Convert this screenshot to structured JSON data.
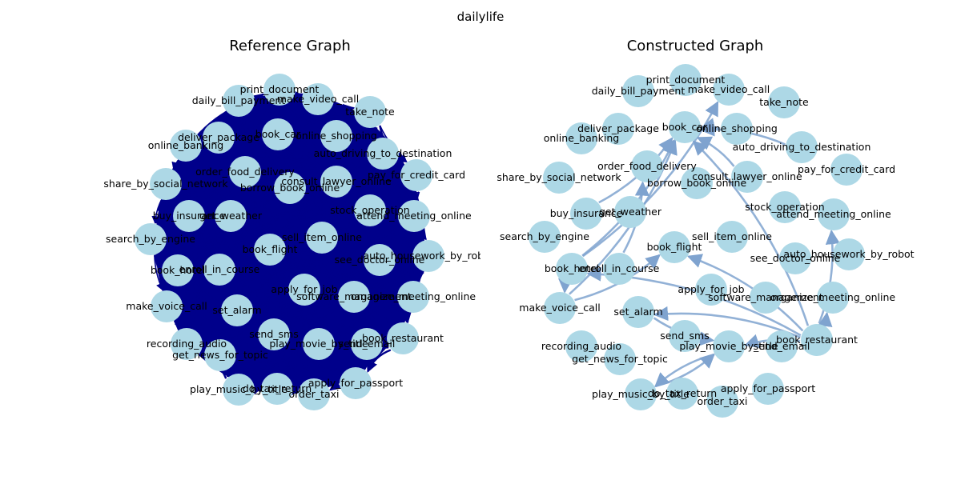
{
  "figure_title": "dailylife",
  "colors": {
    "node_fill": "#add8e6",
    "reference_edge": "#00008b",
    "constructed_edge": "#7fa3cf",
    "text": "#000000"
  },
  "reference_graph": {
    "title": "Reference Graph",
    "nodes": [
      {
        "id": "print_document",
        "label": "print_document"
      },
      {
        "id": "make_video_call",
        "label": "make_video_call"
      },
      {
        "id": "daily_bill_payment",
        "label": "daily_bill_payment"
      },
      {
        "id": "take_note",
        "label": "take_note"
      },
      {
        "id": "book_car",
        "label": "book_car"
      },
      {
        "id": "online_shopping",
        "label": "online_shopping"
      },
      {
        "id": "deliver_package",
        "label": "deliver_package"
      },
      {
        "id": "online_banking",
        "label": "online_banking"
      },
      {
        "id": "auto_driving_to_destination",
        "label": "auto_driving_to_destination"
      },
      {
        "id": "order_food_delivery",
        "label": "order_food_delivery"
      },
      {
        "id": "pay_for_credit_card",
        "label": "pay_for_credit_card"
      },
      {
        "id": "share_by_social_network",
        "label": "share_by_social_network"
      },
      {
        "id": "consult_lawyer_online",
        "label": "consult_lawyer_online"
      },
      {
        "id": "borrow_book_online",
        "label": "borrow_book_online"
      },
      {
        "id": "buy_insurance",
        "label": "buy_insurance"
      },
      {
        "id": "get_weather",
        "label": "get_weather"
      },
      {
        "id": "stock_operation",
        "label": "stock_operation"
      },
      {
        "id": "attend_meeting_online",
        "label": "attend_meeting_online"
      },
      {
        "id": "search_by_engine",
        "label": "search_by_engine"
      },
      {
        "id": "sell_item_online",
        "label": "sell_item_online"
      },
      {
        "id": "book_flight",
        "label": "book_flight"
      },
      {
        "id": "auto_housework_by_robot",
        "label": "auto_housework_by_robot"
      },
      {
        "id": "see_doctor_online",
        "label": "see_doctor_online"
      },
      {
        "id": "book_hotel",
        "label": "book_hotel"
      },
      {
        "id": "enroll_in_course",
        "label": "enroll_in_course"
      },
      {
        "id": "apply_for_job",
        "label": "apply_for_job"
      },
      {
        "id": "software_management",
        "label": "software_management"
      },
      {
        "id": "organize_meeting_online",
        "label": "organize_meeting_online"
      },
      {
        "id": "make_voice_call",
        "label": "make_voice_call"
      },
      {
        "id": "set_alarm",
        "label": "set_alarm"
      },
      {
        "id": "send_sms",
        "label": "send_sms"
      },
      {
        "id": "play_movie_by_title",
        "label": "play_movie_by_title"
      },
      {
        "id": "send_email",
        "label": "send_email"
      },
      {
        "id": "book_restaurant",
        "label": "book_restaurant"
      },
      {
        "id": "recording_audio",
        "label": "recording_audio"
      },
      {
        "id": "get_news_for_topic",
        "label": "get_news_for_topic"
      },
      {
        "id": "apply_for_passport",
        "label": "apply_for_passport"
      },
      {
        "id": "play_music_by_title",
        "label": "play_music_by_title"
      },
      {
        "id": "do_tax_return",
        "label": "do_tax_return"
      },
      {
        "id": "order_taxi",
        "label": "order_taxi"
      }
    ]
  },
  "constructed_graph": {
    "title": "Constructed Graph",
    "nodes": [
      {
        "id": "print_document",
        "label": "print_document"
      },
      {
        "id": "make_video_call",
        "label": "make_video_call"
      },
      {
        "id": "daily_bill_payment",
        "label": "daily_bill_payment"
      },
      {
        "id": "take_note",
        "label": "take_note"
      },
      {
        "id": "deliver_package",
        "label": "deliver_package"
      },
      {
        "id": "book_car",
        "label": "book_car"
      },
      {
        "id": "online_shopping",
        "label": "online_shopping"
      },
      {
        "id": "online_banking",
        "label": "online_banking"
      },
      {
        "id": "auto_driving_to_destination",
        "label": "auto_driving_to_destination"
      },
      {
        "id": "order_food_delivery",
        "label": "order_food_delivery"
      },
      {
        "id": "pay_for_credit_card",
        "label": "pay_for_credit_card"
      },
      {
        "id": "share_by_social_network",
        "label": "share_by_social_network"
      },
      {
        "id": "consult_lawyer_online",
        "label": "consult_lawyer_online"
      },
      {
        "id": "borrow_book_online",
        "label": "borrow_book_online"
      },
      {
        "id": "buy_insurance",
        "label": "buy_insurance"
      },
      {
        "id": "get_weather",
        "label": "get_weather"
      },
      {
        "id": "stock_operation",
        "label": "stock_operation"
      },
      {
        "id": "attend_meeting_online",
        "label": "attend_meeting_online"
      },
      {
        "id": "search_by_engine",
        "label": "search_by_engine"
      },
      {
        "id": "sell_item_online",
        "label": "sell_item_online"
      },
      {
        "id": "book_flight",
        "label": "book_flight"
      },
      {
        "id": "auto_housework_by_robot",
        "label": "auto_housework_by_robot"
      },
      {
        "id": "see_doctor_online",
        "label": "see_doctor_online"
      },
      {
        "id": "book_hotel",
        "label": "book_hotel"
      },
      {
        "id": "enroll_in_course",
        "label": "enroll_in_course"
      },
      {
        "id": "apply_for_job",
        "label": "apply_for_job"
      },
      {
        "id": "software_management",
        "label": "software_management"
      },
      {
        "id": "organize_meeting_online",
        "label": "organize_meeting_online"
      },
      {
        "id": "make_voice_call",
        "label": "make_voice_call"
      },
      {
        "id": "set_alarm",
        "label": "set_alarm"
      },
      {
        "id": "send_sms",
        "label": "send_sms"
      },
      {
        "id": "play_movie_by_title",
        "label": "play_movie_by_title"
      },
      {
        "id": "send_email",
        "label": "send_email"
      },
      {
        "id": "book_restaurant",
        "label": "book_restaurant"
      },
      {
        "id": "recording_audio",
        "label": "recording_audio"
      },
      {
        "id": "get_news_for_topic",
        "label": "get_news_for_topic"
      },
      {
        "id": "apply_for_passport",
        "label": "apply_for_passport"
      },
      {
        "id": "play_music_by_title",
        "label": "play_music_by_title"
      },
      {
        "id": "do_tax_return",
        "label": "do_tax_return"
      },
      {
        "id": "order_taxi",
        "label": "order_taxi"
      }
    ],
    "edges": [
      {
        "source": "book_hotel",
        "target": "book_car"
      },
      {
        "source": "book_hotel",
        "target": "make_video_call"
      },
      {
        "source": "book_hotel",
        "target": "make_voice_call"
      },
      {
        "source": "make_voice_call",
        "target": "book_car"
      },
      {
        "source": "make_voice_call",
        "target": "book_flight"
      },
      {
        "source": "book_restaurant",
        "target": "book_car"
      },
      {
        "source": "book_restaurant",
        "target": "book_flight"
      },
      {
        "source": "book_restaurant",
        "target": "set_alarm"
      },
      {
        "source": "book_restaurant",
        "target": "play_movie_by_title"
      },
      {
        "source": "book_restaurant",
        "target": "book_hotel"
      },
      {
        "source": "book_restaurant",
        "target": "attend_meeting_online"
      },
      {
        "source": "book_restaurant",
        "target": "organize_meeting_online"
      },
      {
        "source": "set_alarm",
        "target": "play_movie_by_title"
      },
      {
        "source": "play_movie_by_title",
        "target": "play_music_by_title"
      },
      {
        "source": "play_music_by_title",
        "target": "play_movie_by_title"
      },
      {
        "source": "online_shopping",
        "target": "book_car"
      },
      {
        "source": "auto_driving_to_destination",
        "target": "book_car"
      },
      {
        "source": "consult_lawyer_online",
        "target": "book_car"
      },
      {
        "source": "enroll_in_course",
        "target": "order_food_delivery"
      },
      {
        "source": "buy_insurance",
        "target": "book_car"
      }
    ]
  }
}
